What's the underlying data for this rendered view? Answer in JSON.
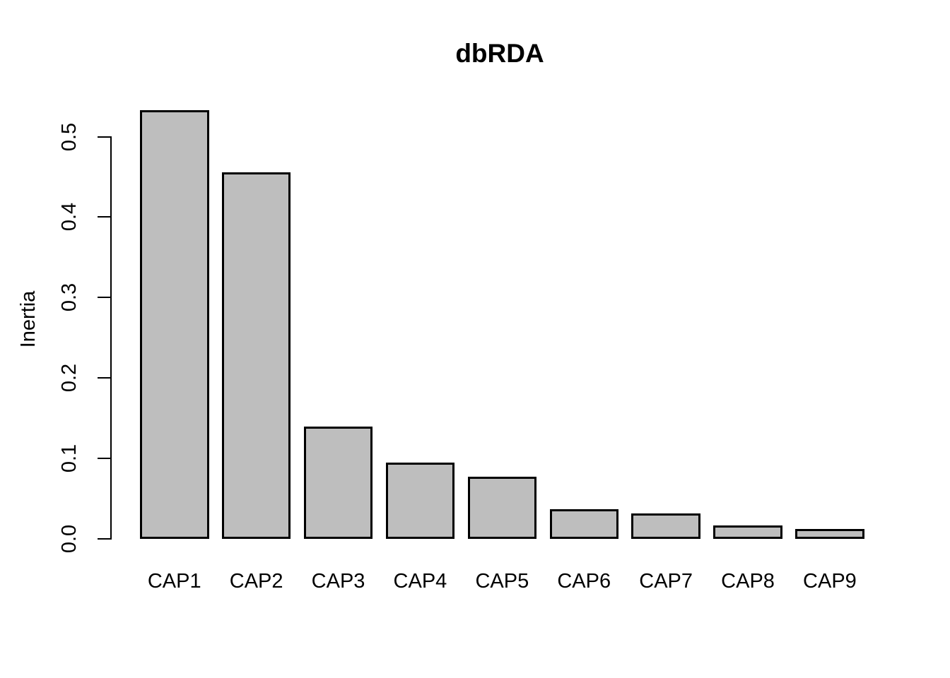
{
  "chart_data": {
    "type": "bar",
    "title": "dbRDA",
    "xlabel": "",
    "ylabel": "Inertia",
    "categories": [
      "CAP1",
      "CAP2",
      "CAP3",
      "CAP4",
      "CAP5",
      "CAP6",
      "CAP7",
      "CAP8",
      "CAP9"
    ],
    "values": [
      0.533,
      0.456,
      0.14,
      0.095,
      0.077,
      0.037,
      0.032,
      0.017,
      0.012
    ],
    "yticks": [
      0.0,
      0.1,
      0.2,
      0.3,
      0.4,
      0.5
    ],
    "ytick_labels": [
      "0.0",
      "0.1",
      "0.2",
      "0.3",
      "0.4",
      "0.5"
    ],
    "ylim": [
      0,
      0.55
    ],
    "grid": false,
    "legend": "none",
    "colors": {
      "bar_fill": "#BEBEBE",
      "bar_border": "#000000",
      "axis": "#000000",
      "background": "#FFFFFF"
    }
  }
}
